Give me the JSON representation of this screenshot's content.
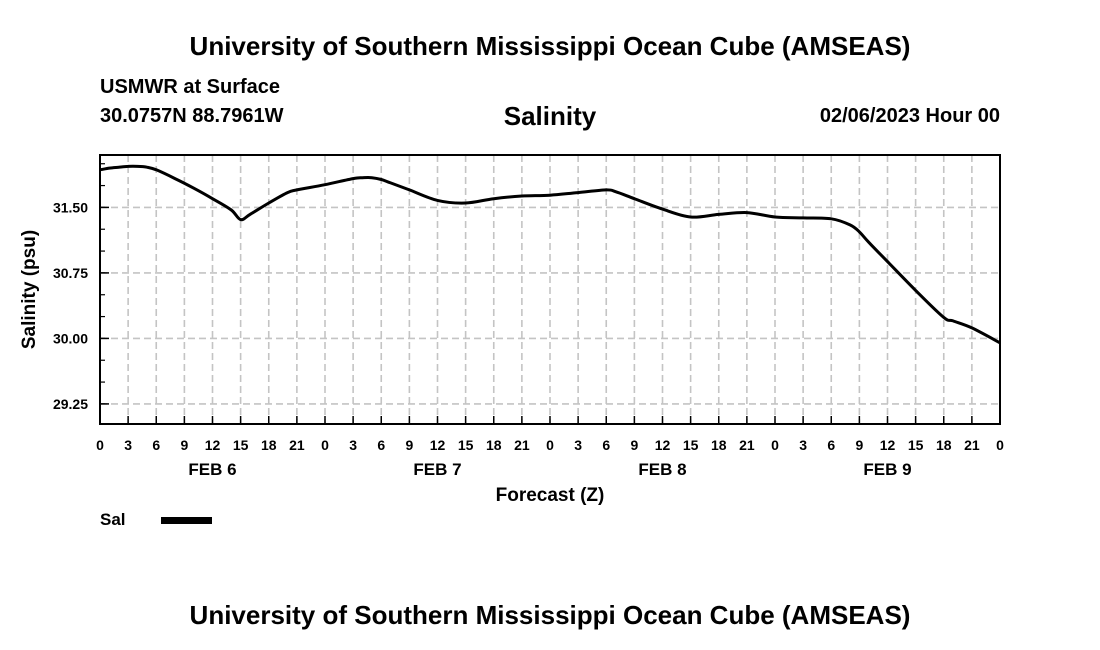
{
  "header": {
    "title": "University of Southern Mississippi Ocean Cube (AMSEAS)",
    "station": "USMWR at Surface",
    "coords": "30.0757N  88.7961W",
    "variable": "Salinity",
    "datetime": "02/06/2023 Hour 00"
  },
  "footer": {
    "title": "University of Southern Mississippi Ocean Cube (AMSEAS)"
  },
  "legend": {
    "label": "Sal",
    "color": "#000000"
  },
  "chart_data": {
    "type": "line",
    "title": "Salinity",
    "xlabel": "Forecast (Z)",
    "ylabel": "Salinity (psu)",
    "xlim": [
      0,
      96
    ],
    "ylim": [
      29.02,
      32.1
    ],
    "grid": true,
    "x_tick_labels": [
      "0",
      "3",
      "6",
      "9",
      "12",
      "15",
      "18",
      "21",
      "0",
      "3",
      "6",
      "9",
      "12",
      "15",
      "18",
      "21",
      "0",
      "3",
      "6",
      "9",
      "12",
      "15",
      "18",
      "21",
      "0",
      "3",
      "6",
      "9",
      "12",
      "15",
      "18",
      "21",
      "0"
    ],
    "y_ticks": [
      29.25,
      30.0,
      30.75,
      31.5
    ],
    "y_tick_labels": [
      "29.25",
      "30.00",
      "30.75",
      "31.50"
    ],
    "day_labels": [
      {
        "label": "FEB 6",
        "hour": 12
      },
      {
        "label": "FEB 7",
        "hour": 36
      },
      {
        "label": "FEB 8",
        "hour": 60
      },
      {
        "label": "FEB 9",
        "hour": 84
      }
    ],
    "series": [
      {
        "name": "Sal",
        "x": [
          0,
          1,
          2,
          3,
          4,
          5,
          6,
          8,
          10,
          12,
          14,
          15,
          16,
          18,
          20,
          21,
          24,
          27,
          28,
          29,
          30,
          31,
          33,
          36,
          39,
          42,
          45,
          48,
          51,
          54,
          55,
          57,
          60,
          63,
          66,
          69,
          72,
          75,
          78,
          80,
          81,
          82,
          84,
          87,
          90,
          91,
          93,
          96
        ],
        "values": [
          31.93,
          31.95,
          31.96,
          31.97,
          31.97,
          31.96,
          31.93,
          31.83,
          31.72,
          31.6,
          31.47,
          31.36,
          31.42,
          31.55,
          31.67,
          31.7,
          31.76,
          31.83,
          31.84,
          31.84,
          31.82,
          31.78,
          31.7,
          31.58,
          31.55,
          31.6,
          31.63,
          31.64,
          31.67,
          31.7,
          31.68,
          31.6,
          31.48,
          31.39,
          31.42,
          31.44,
          31.39,
          31.38,
          31.37,
          31.3,
          31.22,
          31.1,
          30.88,
          30.55,
          30.24,
          30.2,
          30.12,
          29.95
        ]
      }
    ]
  }
}
